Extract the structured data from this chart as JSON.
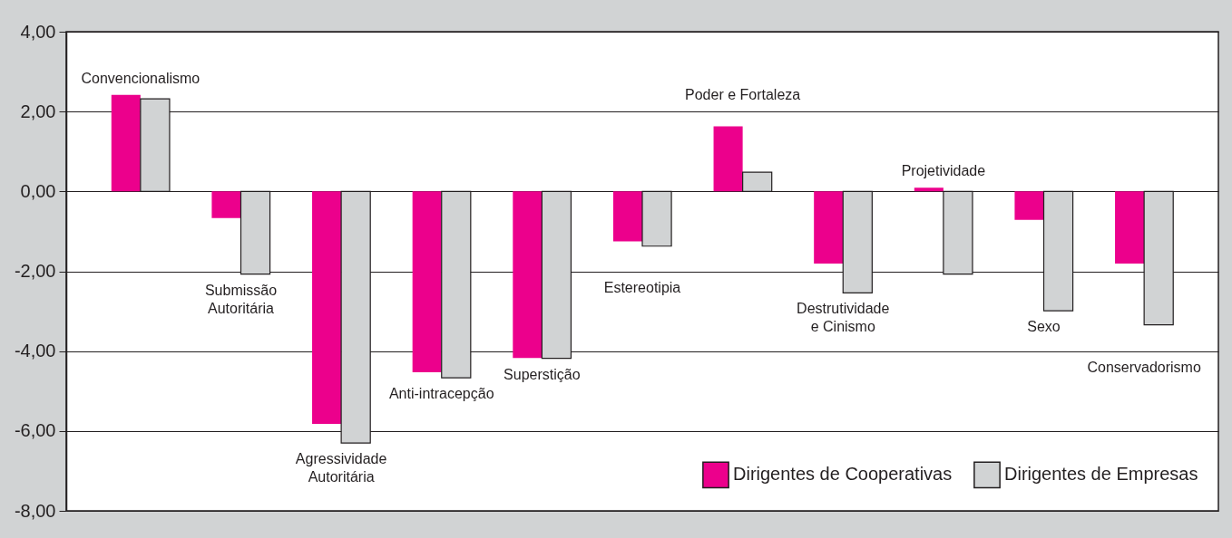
{
  "chart_data": {
    "type": "bar",
    "categories": [
      "Convencionalismo",
      "Submissão\nAutoritária",
      "Agressividade\nAutoritária",
      "Anti-intracepção",
      "Superstição",
      "Estereotipia",
      "Poder e Fortaleza",
      "Destrutividade\ne Cinismo",
      "Projetividade",
      "Sexo",
      "Conservadorismo"
    ],
    "series": [
      {
        "name": "Dirigentes de Cooperativas",
        "color": "#ec008c",
        "values": [
          2.42,
          -0.67,
          -5.82,
          -4.53,
          -4.17,
          -1.25,
          1.63,
          -1.81,
          0.09,
          -0.71,
          -1.81
        ]
      },
      {
        "name": "Dirigentes de Empresas",
        "color": "#d1d3d4",
        "values": [
          2.32,
          -2.07,
          -6.3,
          -4.67,
          -4.18,
          -1.37,
          0.48,
          -2.54,
          -2.07,
          -2.99,
          -3.34
        ]
      }
    ],
    "ylim": [
      -8,
      4
    ],
    "yticks": [
      {
        "value": -8,
        "label": "-8,00"
      },
      {
        "value": -6,
        "label": "-6,00"
      },
      {
        "value": -4,
        "label": "-4,00"
      },
      {
        "value": -2,
        "label": "-2,00"
      },
      {
        "value": 0,
        "label": "0,00"
      },
      {
        "value": 2,
        "label": "2,00"
      },
      {
        "value": 4,
        "label": "4,00"
      }
    ],
    "grid": "y",
    "legend": "bottom right",
    "tick_labels": "y"
  }
}
